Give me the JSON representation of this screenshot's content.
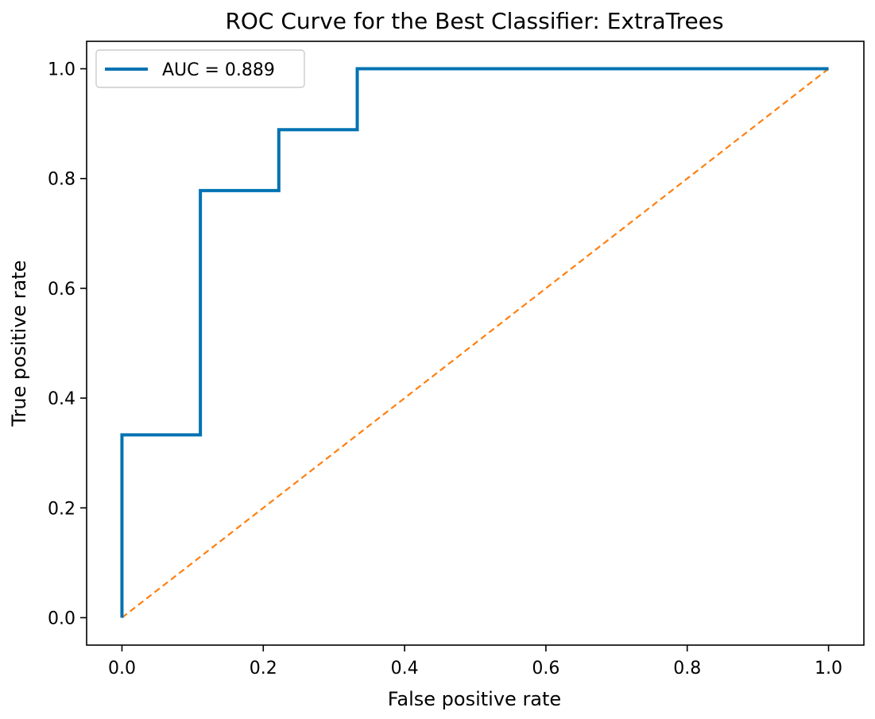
{
  "chart_data": {
    "type": "line",
    "title": "ROC Curve for the Best Classifier: ExtraTrees",
    "xlabel": "False positive rate",
    "ylabel": "True positive rate",
    "xlim": [
      -0.05,
      1.05
    ],
    "ylim": [
      -0.05,
      1.05
    ],
    "xticks": [
      0.0,
      0.2,
      0.4,
      0.6,
      0.8,
      1.0
    ],
    "yticks": [
      0.0,
      0.2,
      0.4,
      0.6,
      0.8,
      1.0
    ],
    "xtick_labels": [
      "0.0",
      "0.2",
      "0.4",
      "0.6",
      "0.8",
      "1.0"
    ],
    "ytick_labels": [
      "0.0",
      "0.2",
      "0.4",
      "0.6",
      "0.8",
      "1.0"
    ],
    "grid": false,
    "legend_position": "top-left",
    "series": [
      {
        "name": "AUC = 0.889",
        "color": "#0072b2",
        "style": "solid",
        "x": [
          0.0,
          0.0,
          0.111,
          0.111,
          0.222,
          0.222,
          0.333,
          0.333,
          1.0
        ],
        "y": [
          0.0,
          0.333,
          0.333,
          0.778,
          0.778,
          0.889,
          0.889,
          1.0,
          1.0
        ]
      },
      {
        "color": "#ff7f0e",
        "style": "dashed",
        "x": [
          0.0,
          1.0
        ],
        "y": [
          0.0,
          1.0
        ]
      }
    ]
  }
}
